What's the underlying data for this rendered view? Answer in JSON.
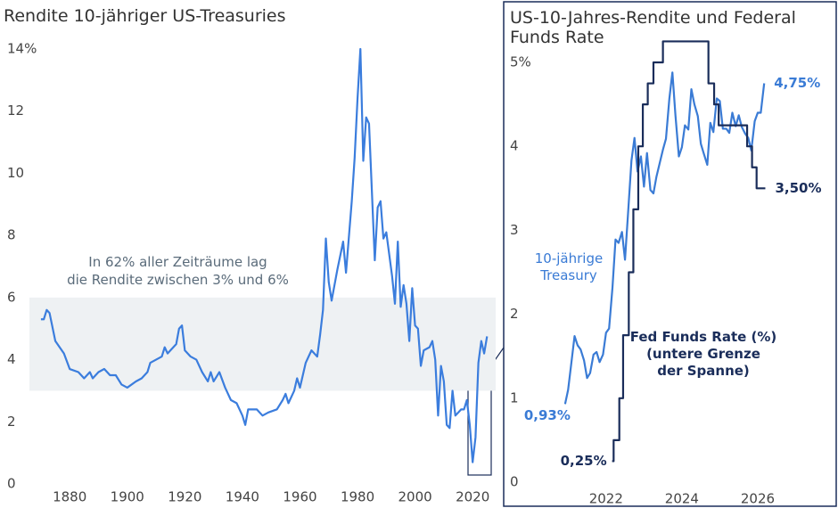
{
  "chart_data": [
    {
      "type": "line",
      "title": "Rendite 10-jähriger US-Treasuries",
      "annotation": "In 62% aller Zeiträume lag\ndie Rendite zwischen 3% und 6%",
      "shade_y": [
        3,
        6
      ],
      "shade_color": "#eef1f3",
      "color": "#3b7ddd",
      "x": [
        1870,
        1871,
        1872,
        1873,
        1875,
        1878,
        1880,
        1883,
        1885,
        1887,
        1888,
        1890,
        1892,
        1894,
        1896,
        1898,
        1900,
        1903,
        1905,
        1907,
        1908,
        1910,
        1912,
        1913,
        1914,
        1916,
        1917,
        1918,
        1919,
        1920,
        1922,
        1924,
        1926,
        1928,
        1929,
        1930,
        1932,
        1934,
        1936,
        1938,
        1940,
        1941,
        1942,
        1945,
        1947,
        1949,
        1952,
        1954,
        1955,
        1956,
        1958,
        1959,
        1960,
        1962,
        1964,
        1966,
        1967,
        1968,
        1969,
        1970,
        1971,
        1973,
        1975,
        1976,
        1978,
        1979,
        1980,
        1981,
        1982,
        1983,
        1984,
        1986,
        1987,
        1988,
        1989,
        1990,
        1992,
        1993,
        1994,
        1995,
        1996,
        1997,
        1998,
        1999,
        2000,
        2001,
        2002,
        2003,
        2005,
        2006,
        2007,
        2008,
        2009,
        2010,
        2011,
        2012,
        2013,
        2014,
        2015,
        2016,
        2017,
        2018,
        2019,
        2020,
        2021,
        2022,
        2023,
        2024,
        2025
      ],
      "values": [
        5.3,
        5.3,
        5.6,
        5.5,
        4.6,
        4.2,
        3.7,
        3.6,
        3.4,
        3.6,
        3.4,
        3.6,
        3.7,
        3.5,
        3.5,
        3.2,
        3.1,
        3.3,
        3.4,
        3.6,
        3.9,
        4.0,
        4.1,
        4.4,
        4.2,
        4.4,
        4.5,
        5.0,
        5.1,
        4.3,
        4.1,
        4.0,
        3.6,
        3.3,
        3.6,
        3.3,
        3.6,
        3.1,
        2.7,
        2.6,
        2.2,
        1.9,
        2.4,
        2.4,
        2.2,
        2.3,
        2.4,
        2.7,
        2.9,
        2.6,
        3.0,
        3.4,
        3.1,
        3.9,
        4.3,
        4.1,
        4.8,
        5.6,
        7.9,
        6.5,
        5.9,
        6.9,
        7.8,
        6.8,
        9.1,
        10.5,
        12.4,
        14.0,
        10.4,
        11.8,
        11.6,
        7.2,
        8.9,
        9.1,
        7.9,
        8.1,
        6.7,
        5.8,
        7.8,
        5.7,
        6.4,
        5.8,
        4.6,
        6.3,
        5.1,
        5.0,
        3.8,
        4.3,
        4.4,
        4.6,
        4.0,
        2.2,
        3.8,
        3.3,
        1.9,
        1.8,
        3.0,
        2.2,
        2.3,
        2.4,
        2.4,
        2.7,
        1.9,
        0.7,
        1.5,
        3.9,
        4.6,
        4.2,
        4.75
      ],
      "xlim": [
        1866,
        2028
      ],
      "xticks": [
        1880,
        1900,
        1920,
        1940,
        1960,
        1980,
        2000,
        2020
      ],
      "ylim": [
        0,
        14
      ],
      "yticks": [
        0,
        2,
        4,
        6,
        8,
        10,
        {
          "value": 12,
          "label": "12"
        },
        {
          "value": 14,
          "label": "14%"
        }
      ],
      "grid": false
    },
    {
      "type": "line",
      "title": "US-10-Jahres-Rendite und Federal\nFunds Rate",
      "series": [
        {
          "name": "10-jährige\nTreasury",
          "color": "#3a7bd5",
          "x": [
            2020.92,
            2021.0,
            2021.08,
            2021.17,
            2021.25,
            2021.33,
            2021.42,
            2021.5,
            2021.58,
            2021.67,
            2021.75,
            2021.83,
            2021.92,
            2022.0,
            2022.08,
            2022.17,
            2022.25,
            2022.33,
            2022.42,
            2022.5,
            2022.58,
            2022.67,
            2022.75,
            2022.83,
            2022.92,
            2023.0,
            2023.08,
            2023.17,
            2023.25,
            2023.33,
            2023.42,
            2023.5,
            2023.58,
            2023.67,
            2023.75,
            2023.83,
            2023.92,
            2024.0,
            2024.08,
            2024.17,
            2024.25,
            2024.33,
            2024.42,
            2024.5,
            2024.58,
            2024.67,
            2024.75,
            2024.83,
            2024.92,
            2025.0,
            2025.08,
            2025.17,
            2025.25,
            2025.33,
            2025.42,
            2025.5,
            2025.58,
            2025.67,
            2025.75,
            2025.83,
            2025.92,
            2026.0,
            2026.08,
            2026.17
          ],
          "values": [
            0.93,
            1.1,
            1.4,
            1.74,
            1.63,
            1.58,
            1.45,
            1.24,
            1.3,
            1.52,
            1.55,
            1.43,
            1.52,
            1.78,
            1.83,
            2.32,
            2.89,
            2.85,
            2.98,
            2.65,
            3.2,
            3.83,
            4.1,
            3.7,
            3.88,
            3.52,
            3.92,
            3.48,
            3.44,
            3.64,
            3.81,
            3.96,
            4.09,
            4.57,
            4.88,
            4.37,
            3.88,
            3.99,
            4.25,
            4.2,
            4.68,
            4.5,
            4.36,
            4.03,
            3.91,
            3.78,
            4.28,
            4.17,
            4.57,
            4.54,
            4.21,
            4.21,
            4.16,
            4.4,
            4.24,
            4.37,
            4.23,
            4.15,
            4.1,
            3.95,
            4.3,
            4.4,
            4.4,
            4.75
          ],
          "value_labels": [
            "0,93%",
            null,
            null,
            null,
            null,
            null,
            null,
            null,
            null,
            null,
            null,
            null,
            null,
            null,
            null,
            null,
            null,
            null,
            null,
            null,
            null,
            null,
            null,
            null,
            null,
            null,
            null,
            null,
            null,
            null,
            null,
            null,
            null,
            null,
            null,
            null,
            null,
            null,
            null,
            null,
            null,
            null,
            null,
            null,
            null,
            null,
            null,
            null,
            null,
            null,
            null,
            null,
            null,
            null,
            null,
            null,
            null,
            null,
            null,
            null,
            null,
            null,
            null,
            "4,75%"
          ]
        },
        {
          "name": "Fed Funds Rate (%)\n(untere Grenze\nder Spanne)",
          "color": "#1a2d5a",
          "drawstyle": "steps-post",
          "x": [
            2022.16,
            2022.2,
            2022.35,
            2022.45,
            2022.6,
            2022.72,
            2022.85,
            2022.97,
            2023.1,
            2023.25,
            2023.5,
            2024.7,
            2024.85,
            2024.97,
            2025.72,
            2025.85,
            2025.97,
            2026.2
          ],
          "values": [
            0.25,
            0.5,
            1.0,
            1.75,
            2.5,
            3.25,
            4.0,
            4.5,
            4.75,
            5.0,
            5.25,
            4.75,
            4.5,
            4.25,
            4.0,
            3.75,
            3.5,
            3.5
          ],
          "value_labels": [
            "0,25%",
            null,
            null,
            null,
            null,
            null,
            null,
            null,
            null,
            null,
            null,
            null,
            null,
            null,
            null,
            null,
            null,
            "3,50%"
          ]
        }
      ],
      "xlim": [
        2020.5,
        2026.8
      ],
      "xticks": [
        2022,
        2024,
        2026
      ],
      "ylim": [
        0,
        5
      ],
      "yticks": [
        0,
        1,
        2,
        3,
        4,
        {
          "value": 5,
          "label": "5%"
        }
      ],
      "grid": false
    }
  ]
}
